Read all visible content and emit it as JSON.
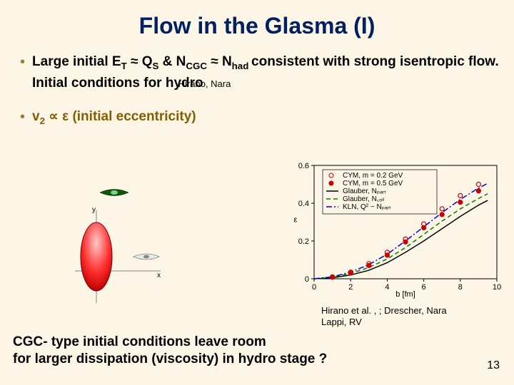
{
  "title": "Flow in the Glasma (I)",
  "bullet1": {
    "part1": "Large initial E",
    "sub1": "T",
    "approx": "≈",
    "part2": " Q",
    "sub2": "S",
    "amp": " & N",
    "sub3": "CGC",
    "part3": " N",
    "sub4": "had ",
    "part4": "consistent with strong isentropic  flow. Initial conditions for hydro",
    "ref": "Hirano, Nara"
  },
  "bullet2": {
    "v2": "v",
    "sub": "2",
    "prop": "∝",
    "eps": "ε",
    "text": " (initial eccentricity)"
  },
  "chart": {
    "xlabel": "b [fm]",
    "ylabel": "ε",
    "xlim": [
      0,
      10
    ],
    "ylim": [
      0,
      0.6
    ],
    "xticks": [
      0,
      2,
      4,
      6,
      8,
      10
    ],
    "yticks": [
      0,
      0.2,
      0.4,
      0.6
    ],
    "legend": [
      {
        "label": "CYM, m = 0.2 GeV",
        "marker": "circle-open",
        "color": "#cc0000"
      },
      {
        "label": "CYM, m = 0.5 GeV",
        "marker": "circle-fill",
        "color": "#cc0000"
      },
      {
        "label": "Glauber, N_part",
        "style": "solid",
        "color": "#000000"
      },
      {
        "label": "Glauber, N_coll",
        "style": "dash",
        "color": "#008000"
      },
      {
        "label": "KLN, Q² ~ N_part",
        "style": "dashdot",
        "color": "#0000cc"
      }
    ],
    "series": {
      "npart": {
        "color": "#000000",
        "style": "solid",
        "pts": [
          [
            0,
            0.0
          ],
          [
            1,
            0.005
          ],
          [
            2,
            0.02
          ],
          [
            3,
            0.045
          ],
          [
            4,
            0.085
          ],
          [
            5,
            0.14
          ],
          [
            6,
            0.2
          ],
          [
            7,
            0.265
          ],
          [
            8,
            0.33
          ],
          [
            9,
            0.39
          ],
          [
            9.5,
            0.415
          ]
        ]
      },
      "ncoll": {
        "color": "#008000",
        "style": "dash",
        "pts": [
          [
            0,
            0.0
          ],
          [
            1,
            0.008
          ],
          [
            2,
            0.028
          ],
          [
            3,
            0.06
          ],
          [
            4,
            0.105
          ],
          [
            5,
            0.165
          ],
          [
            6,
            0.235
          ],
          [
            7,
            0.305
          ],
          [
            8,
            0.37
          ],
          [
            9,
            0.425
          ],
          [
            9.5,
            0.45
          ]
        ]
      },
      "kln": {
        "color": "#0000cc",
        "style": "dashdot",
        "pts": [
          [
            0,
            0.0
          ],
          [
            1,
            0.01
          ],
          [
            2,
            0.035
          ],
          [
            3,
            0.075
          ],
          [
            4,
            0.13
          ],
          [
            5,
            0.2
          ],
          [
            6,
            0.275
          ],
          [
            7,
            0.35
          ],
          [
            8,
            0.42
          ],
          [
            9,
            0.48
          ],
          [
            9.5,
            0.505
          ]
        ]
      },
      "cym02": {
        "color": "#cc0000",
        "marker": "open",
        "pts": [
          [
            1,
            0.01
          ],
          [
            2,
            0.035
          ],
          [
            3,
            0.08
          ],
          [
            4,
            0.14
          ],
          [
            5,
            0.21
          ],
          [
            6,
            0.29
          ],
          [
            7,
            0.37
          ],
          [
            8,
            0.44
          ],
          [
            9,
            0.5
          ]
        ]
      },
      "cym05": {
        "color": "#cc0000",
        "marker": "fill",
        "pts": [
          [
            1,
            0.008
          ],
          [
            2,
            0.03
          ],
          [
            3,
            0.07
          ],
          [
            4,
            0.125
          ],
          [
            5,
            0.195
          ],
          [
            6,
            0.27
          ],
          [
            7,
            0.34
          ],
          [
            8,
            0.405
          ],
          [
            9,
            0.465
          ]
        ]
      }
    }
  },
  "chart_refs": {
    "line1": "Hirano et al. , ; Drescher, Nara",
    "line2": "Lappi, RV"
  },
  "conclusion": {
    "line1": "CGC- type initial conditions leave room",
    "line2": "for larger dissipation (viscosity) in hydro stage ?"
  },
  "page_num": "13",
  "diagram": {
    "ellipse_fill_top": "#ff2020",
    "ellipse_fill_bot": "#ffb0b0",
    "eye_color": "#004000",
    "axis_color": "#888888"
  }
}
